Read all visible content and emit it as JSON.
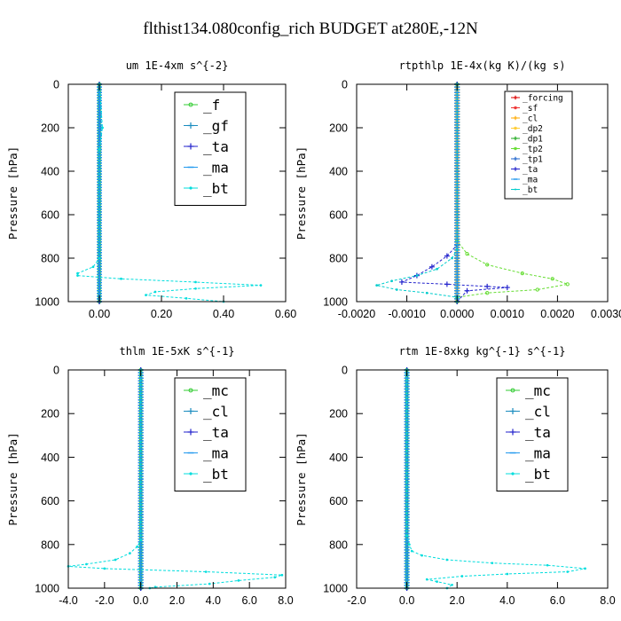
{
  "figure": {
    "title": "flthist134.080config_rich  BUDGET at280E,-12N"
  },
  "chart_data": [
    {
      "type": "line",
      "title": "um  1E-4xm s^{-2}",
      "ylabel": "Pressure [hPa]",
      "xlabel": "",
      "xlim": [
        -0.1,
        0.6
      ],
      "ylim": [
        1000,
        0
      ],
      "xticks": [
        "0.00",
        "0.20",
        "0.40",
        "0.60"
      ],
      "xtick_values": [
        0.0,
        0.2,
        0.4,
        0.6
      ],
      "yticks": [
        "0",
        "200",
        "400",
        "600",
        "800",
        "1000"
      ],
      "ytick_values": [
        0,
        200,
        400,
        600,
        800,
        1000
      ],
      "legend": {
        "placement": "top-right",
        "size": "large"
      },
      "series": [
        {
          "name": "_f",
          "color": "#33cc33",
          "marker": "circle",
          "points": [
            [
              0,
              0
            ],
            [
              0,
              100
            ],
            [
              0,
              200
            ],
            [
              0,
              300
            ],
            [
              0,
              400
            ],
            [
              0,
              500
            ],
            [
              0,
              600
            ],
            [
              0,
              700
            ],
            [
              0,
              800
            ],
            [
              0,
              900
            ],
            [
              0,
              1000
            ]
          ]
        },
        {
          "name": "_gf",
          "color": "#1a8cbf",
          "marker": "plus",
          "points": [
            [
              0,
              0
            ],
            [
              0.005,
              200
            ],
            [
              0,
              300
            ],
            [
              0,
              1000
            ]
          ]
        },
        {
          "name": "_ta",
          "color": "#2222cc",
          "marker": "plus",
          "points": [
            [
              0,
              0
            ],
            [
              0,
              1000
            ]
          ]
        },
        {
          "name": "_ma",
          "color": "#2299ee",
          "marker": "dash",
          "points": [
            [
              0,
              0
            ],
            [
              0,
              1000
            ]
          ]
        },
        {
          "name": "_bt",
          "color": "#00dddd",
          "marker": "dot",
          "points": [
            [
              0,
              0
            ],
            [
              0.01,
              200
            ],
            [
              0,
              300
            ],
            [
              0,
              800
            ],
            [
              -0.02,
              840
            ],
            [
              -0.07,
              870
            ],
            [
              -0.07,
              880
            ],
            [
              0.07,
              895
            ],
            [
              0.31,
              910
            ],
            [
              0.52,
              925
            ],
            [
              0.31,
              940
            ],
            [
              0.18,
              955
            ],
            [
              0.15,
              970
            ],
            [
              0.28,
              985
            ],
            [
              0.4,
              1000
            ]
          ]
        }
      ]
    },
    {
      "type": "line",
      "title": "rtpthlp  1E-4x(kg K)/(kg s)",
      "ylabel": "Pressure [hPa]",
      "xlabel": "",
      "xlim": [
        -0.002,
        0.003
      ],
      "ylim": [
        1000,
        0
      ],
      "xticks": [
        "-0.0020",
        "-0.0010",
        "0.0000",
        "0.0010",
        "0.0020",
        "0.0030"
      ],
      "xtick_values": [
        -0.002,
        -0.001,
        0.0,
        0.001,
        0.002,
        0.003
      ],
      "yticks": [
        "0",
        "200",
        "400",
        "600",
        "800",
        "1000"
      ],
      "ytick_values": [
        0,
        200,
        400,
        600,
        800,
        1000
      ],
      "legend": {
        "placement": "top-right",
        "size": "small"
      },
      "series": [
        {
          "name": "_forcing",
          "color": "#dd0000",
          "marker": "plus",
          "points": [
            [
              0,
              0
            ],
            [
              0,
              1000
            ]
          ]
        },
        {
          "name": "_sf",
          "color": "#ee3333",
          "marker": "circle",
          "points": [
            [
              0,
              0
            ],
            [
              0,
              1000
            ]
          ]
        },
        {
          "name": "_cl",
          "color": "#ffaa00",
          "marker": "plus",
          "points": [
            [
              0,
              0
            ],
            [
              0,
              1000
            ]
          ]
        },
        {
          "name": "_dp2",
          "color": "#ffcc33",
          "marker": "circle",
          "points": [
            [
              0,
              0
            ],
            [
              0,
              1000
            ]
          ]
        },
        {
          "name": "_dp1",
          "color": "#22aa22",
          "marker": "plus",
          "points": [
            [
              0,
              0
            ],
            [
              0,
              1000
            ]
          ]
        },
        {
          "name": "_tp2",
          "color": "#66dd33",
          "marker": "circle",
          "points": [
            [
              0,
              0
            ],
            [
              0,
              720
            ],
            [
              0.0002,
              780
            ],
            [
              0.0006,
              830
            ],
            [
              0.0013,
              870
            ],
            [
              0.0019,
              895
            ],
            [
              0.0022,
              920
            ],
            [
              0.0016,
              945
            ],
            [
              0.0006,
              960
            ],
            [
              0,
              980
            ],
            [
              0,
              1000
            ]
          ]
        },
        {
          "name": "_tp1",
          "color": "#2266cc",
          "marker": "plus",
          "points": [
            [
              0,
              0
            ],
            [
              0,
              1000
            ]
          ]
        },
        {
          "name": "_ta",
          "color": "#2222cc",
          "marker": "plus",
          "points": [
            [
              0,
              0
            ],
            [
              0,
              740
            ],
            [
              -0.0002,
              790
            ],
            [
              -0.0005,
              840
            ],
            [
              -0.0008,
              880
            ],
            [
              -0.0011,
              910
            ],
            [
              -0.0002,
              920
            ],
            [
              0.0006,
              930
            ],
            [
              0.001,
              935
            ],
            [
              0.0002,
              950
            ],
            [
              0,
              1000
            ]
          ]
        },
        {
          "name": "_ma",
          "color": "#2299ee",
          "marker": "dash",
          "points": [
            [
              0,
              0
            ],
            [
              0,
              1000
            ]
          ]
        },
        {
          "name": "_bt",
          "color": "#00cccc",
          "marker": "dot",
          "points": [
            [
              0,
              0
            ],
            [
              0,
              760
            ],
            [
              -0.0001,
              800
            ],
            [
              -0.0004,
              850
            ],
            [
              -0.0008,
              880
            ],
            [
              -0.0013,
              905
            ],
            [
              -0.0016,
              925
            ],
            [
              -0.0012,
              945
            ],
            [
              -0.0006,
              960
            ],
            [
              0,
              980
            ],
            [
              0,
              1000
            ]
          ]
        }
      ]
    },
    {
      "type": "line",
      "title": "thlm  1E-5xK s^{-1}",
      "ylabel": "Pressure [hPa]",
      "xlabel": "",
      "xlim": [
        -4.0,
        8.0
      ],
      "ylim": [
        1000,
        0
      ],
      "xticks": [
        "-4.0",
        "-2.0",
        "0.0",
        "2.0",
        "4.0",
        "6.0",
        "8.0"
      ],
      "xtick_values": [
        -4,
        -2,
        0,
        2,
        4,
        6,
        8
      ],
      "yticks": [
        "0",
        "200",
        "400",
        "600",
        "800",
        "1000"
      ],
      "ytick_values": [
        0,
        200,
        400,
        600,
        800,
        1000
      ],
      "legend": {
        "placement": "top-right",
        "size": "large"
      },
      "series": [
        {
          "name": "_mc",
          "color": "#33cc33",
          "marker": "circle",
          "points": [
            [
              0,
              0
            ],
            [
              0,
              200
            ],
            [
              0,
              400
            ],
            [
              0,
              600
            ],
            [
              0,
              800
            ],
            [
              0,
              1000
            ]
          ]
        },
        {
          "name": "_cl",
          "color": "#1a8cbf",
          "marker": "plus",
          "points": [
            [
              0,
              0
            ],
            [
              0,
              1000
            ]
          ]
        },
        {
          "name": "_ta",
          "color": "#2222cc",
          "marker": "plus",
          "points": [
            [
              0,
              0
            ],
            [
              0,
              1000
            ]
          ]
        },
        {
          "name": "_ma",
          "color": "#2299ee",
          "marker": "dash",
          "points": [
            [
              0,
              0
            ],
            [
              0,
              1000
            ]
          ]
        },
        {
          "name": "_bt",
          "color": "#00dddd",
          "marker": "dot",
          "points": [
            [
              0,
              0
            ],
            [
              0,
              780
            ],
            [
              -0.2,
              810
            ],
            [
              -0.6,
              840
            ],
            [
              -1.4,
              870
            ],
            [
              -3.0,
              890
            ],
            [
              -4.0,
              900
            ],
            [
              -2.0,
              910
            ],
            [
              3.6,
              925
            ],
            [
              7.8,
              940
            ],
            [
              7.4,
              950
            ],
            [
              5.4,
              965
            ],
            [
              3.8,
              980
            ],
            [
              0.8,
              995
            ],
            [
              0.5,
              1000
            ]
          ]
        }
      ]
    },
    {
      "type": "line",
      "title": "rtm  1E-8xkg kg^{-1} s^{-1}",
      "ylabel": "Pressure [hPa]",
      "xlabel": "",
      "xlim": [
        -2.0,
        8.0
      ],
      "ylim": [
        1000,
        0
      ],
      "xticks": [
        "-2.0",
        "0.0",
        "2.0",
        "4.0",
        "6.0",
        "8.0"
      ],
      "xtick_values": [
        -2,
        0,
        2,
        4,
        6,
        8
      ],
      "yticks": [
        "0",
        "200",
        "400",
        "600",
        "800",
        "1000"
      ],
      "ytick_values": [
        0,
        200,
        400,
        600,
        800,
        1000
      ],
      "legend": {
        "placement": "top-right",
        "size": "large"
      },
      "series": [
        {
          "name": "_mc",
          "color": "#33cc33",
          "marker": "circle",
          "points": [
            [
              0,
              0
            ],
            [
              0,
              200
            ],
            [
              0,
              400
            ],
            [
              0,
              600
            ],
            [
              0,
              800
            ],
            [
              0,
              1000
            ]
          ]
        },
        {
          "name": "_cl",
          "color": "#1a8cbf",
          "marker": "plus",
          "points": [
            [
              0,
              0
            ],
            [
              0,
              1000
            ]
          ]
        },
        {
          "name": "_ta",
          "color": "#2222cc",
          "marker": "plus",
          "points": [
            [
              0,
              0
            ],
            [
              0,
              1000
            ]
          ]
        },
        {
          "name": "_ma",
          "color": "#2299ee",
          "marker": "dash",
          "points": [
            [
              0,
              0
            ],
            [
              0,
              1000
            ]
          ]
        },
        {
          "name": "_bt",
          "color": "#00dddd",
          "marker": "dot",
          "points": [
            [
              0,
              0
            ],
            [
              0,
              760
            ],
            [
              0.1,
              800
            ],
            [
              0.2,
              830
            ],
            [
              0.6,
              850
            ],
            [
              1.6,
              870
            ],
            [
              3.4,
              885
            ],
            [
              5.6,
              895
            ],
            [
              7.1,
              910
            ],
            [
              6.4,
              925
            ],
            [
              4.0,
              935
            ],
            [
              2.2,
              945
            ],
            [
              0.8,
              960
            ],
            [
              1.2,
              970
            ],
            [
              1.8,
              985
            ],
            [
              1.6,
              1000
            ]
          ]
        }
      ]
    }
  ]
}
